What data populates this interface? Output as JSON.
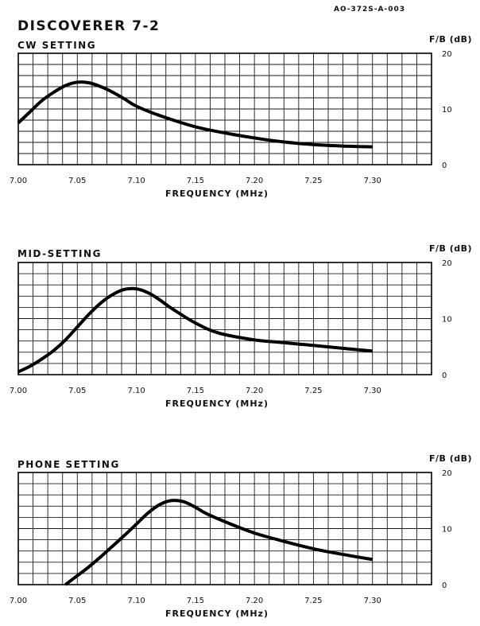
{
  "document_id": "AO-372S-A-003",
  "main_title": "DISCOVERER 7-2",
  "chart_data": [
    {
      "type": "line",
      "title": "CW SETTING",
      "xlabel": "FREQUENCY (MHz)",
      "ylabel": "F/B (dB)",
      "xlim": [
        7.0,
        7.35
      ],
      "ylim": [
        0,
        20
      ],
      "x_ticks": [
        "7.00",
        "7.05",
        "7.10",
        "7.15",
        "7.20",
        "7.25",
        "7.30"
      ],
      "y_ticks": [
        "0",
        "10",
        "20"
      ],
      "grid": true,
      "series": [
        {
          "x": [
            7.0,
            7.01,
            7.02,
            7.03,
            7.04,
            7.05,
            7.06,
            7.07,
            7.08,
            7.09,
            7.1,
            7.12,
            7.15,
            7.18,
            7.2,
            7.22,
            7.25,
            7.28,
            7.3
          ],
          "y": [
            7.5,
            9.5,
            11.5,
            13.0,
            14.2,
            14.8,
            14.7,
            14.0,
            13.0,
            11.8,
            10.5,
            8.8,
            6.8,
            5.5,
            4.8,
            4.2,
            3.6,
            3.3,
            3.2
          ]
        }
      ]
    },
    {
      "type": "line",
      "title": "MID-SETTING",
      "xlabel": "FREQUENCY (MHz)",
      "ylabel": "F/B (dB)",
      "xlim": [
        7.0,
        7.35
      ],
      "ylim": [
        0,
        20
      ],
      "x_ticks": [
        "7.00",
        "7.05",
        "7.10",
        "7.15",
        "7.20",
        "7.25",
        "7.30"
      ],
      "y_ticks": [
        "0",
        "10",
        "20"
      ],
      "grid": true,
      "series": [
        {
          "x": [
            7.0,
            7.01,
            7.02,
            7.03,
            7.04,
            7.05,
            7.06,
            7.07,
            7.08,
            7.09,
            7.1,
            7.11,
            7.12,
            7.13,
            7.15,
            7.17,
            7.2,
            7.22,
            7.25,
            7.28,
            7.3
          ],
          "y": [
            0.5,
            1.5,
            2.8,
            4.3,
            6.2,
            8.5,
            10.8,
            12.8,
            14.3,
            15.2,
            15.3,
            14.6,
            13.3,
            11.8,
            9.2,
            7.4,
            6.2,
            5.8,
            5.2,
            4.6,
            4.2
          ]
        }
      ]
    },
    {
      "type": "line",
      "title": "PHONE SETTING",
      "xlabel": "FREQUENCY (MHz)",
      "ylabel": "F/B (dB)",
      "xlim": [
        7.0,
        7.35
      ],
      "ylim": [
        0,
        20
      ],
      "x_ticks": [
        "7.00",
        "7.05",
        "7.10",
        "7.15",
        "7.20",
        "7.25",
        "7.30"
      ],
      "y_ticks": [
        "0",
        "10",
        "20"
      ],
      "grid": true,
      "series": [
        {
          "x": [
            7.04,
            7.05,
            7.06,
            7.07,
            7.08,
            7.09,
            7.1,
            7.11,
            7.12,
            7.13,
            7.14,
            7.15,
            7.16,
            7.18,
            7.2,
            7.22,
            7.25,
            7.28,
            7.3
          ],
          "y": [
            0.0,
            1.6,
            3.2,
            5.0,
            6.9,
            8.8,
            10.8,
            12.8,
            14.3,
            15.0,
            14.8,
            13.8,
            12.6,
            10.8,
            9.2,
            8.0,
            6.4,
            5.2,
            4.5
          ]
        }
      ]
    }
  ]
}
